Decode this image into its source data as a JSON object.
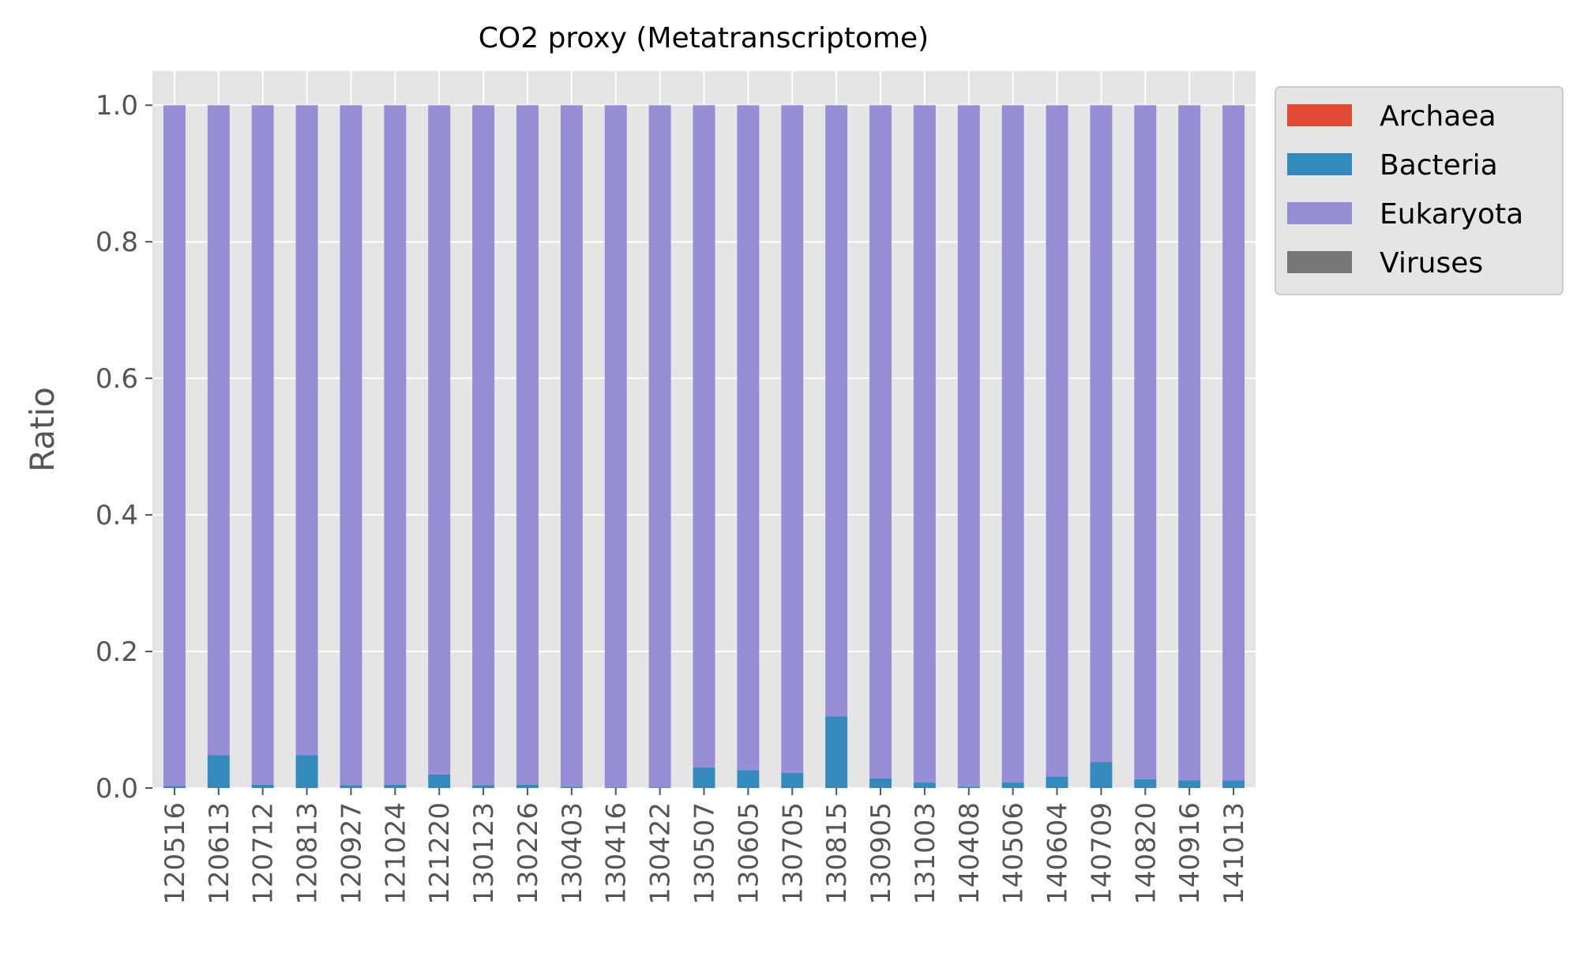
{
  "chart_data": {
    "type": "bar",
    "stacked": true,
    "title": "CO2 proxy (Metatranscriptome)",
    "xlabel": "",
    "ylabel": "Ratio",
    "ylim": [
      0,
      1.05
    ],
    "yticks": [
      "0.0",
      "0.2",
      "0.4",
      "0.6",
      "0.8",
      "1.0"
    ],
    "grid": true,
    "legend_position": "outside-top-right",
    "categories": [
      "120516",
      "120613",
      "120712",
      "120813",
      "120927",
      "121024",
      "121220",
      "130123",
      "130226",
      "130403",
      "130416",
      "130422",
      "130507",
      "130605",
      "130705",
      "130815",
      "130905",
      "131003",
      "140408",
      "140506",
      "140604",
      "140709",
      "140820",
      "140916",
      "141013"
    ],
    "series": [
      {
        "name": "Archaea",
        "color": "#E24A33",
        "values": [
          0,
          0,
          0,
          0,
          0,
          0,
          0,
          0,
          0,
          0,
          0,
          0,
          0,
          0,
          0,
          0,
          0,
          0,
          0,
          0,
          0,
          0,
          0,
          0,
          0
        ]
      },
      {
        "name": "Bacteria",
        "color": "#348ABD",
        "values": [
          0.003,
          0.048,
          0.005,
          0.048,
          0.004,
          0.005,
          0.02,
          0.004,
          0.005,
          0.002,
          0.001,
          0.001,
          0.03,
          0.026,
          0.022,
          0.105,
          0.014,
          0.008,
          0.002,
          0.008,
          0.017,
          0.038,
          0.013,
          0.011,
          0.011
        ]
      },
      {
        "name": "Eukaryota",
        "color": "#988ED5",
        "values": [
          0.997,
          0.952,
          0.995,
          0.952,
          0.996,
          0.995,
          0.98,
          0.996,
          0.995,
          0.998,
          0.999,
          0.999,
          0.97,
          0.974,
          0.978,
          0.895,
          0.986,
          0.992,
          0.998,
          0.992,
          0.983,
          0.962,
          0.987,
          0.989,
          0.989
        ]
      },
      {
        "name": "Viruses",
        "color": "#777777",
        "values": [
          0,
          0,
          0,
          0,
          0,
          0,
          0,
          0,
          0,
          0,
          0,
          0,
          0,
          0,
          0,
          0,
          0,
          0,
          0,
          0,
          0,
          0,
          0,
          0,
          0
        ]
      }
    ],
    "background_color": "#E5E5E5",
    "grid_color": "#FFFFFF"
  }
}
